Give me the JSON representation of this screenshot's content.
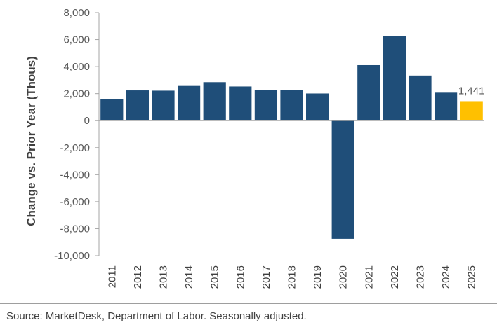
{
  "chart_data": {
    "type": "bar",
    "categories": [
      "2011",
      "2012",
      "2013",
      "2014",
      "2015",
      "2016",
      "2017",
      "2018",
      "2019",
      "2020",
      "2021",
      "2022",
      "2023",
      "2024",
      "2025"
    ],
    "values": [
      1600,
      2240,
      2220,
      2570,
      2850,
      2530,
      2260,
      2280,
      2010,
      -8750,
      4110,
      6250,
      3340,
      2070,
      1441
    ],
    "highlight_index": 14,
    "data_labels": [
      {
        "index": 14,
        "text": "1,441"
      }
    ],
    "title": "",
    "xlabel": "",
    "ylabel": "Change vs. Prior Year (Thous)",
    "ylim": [
      -10000,
      8000
    ],
    "yticks": [
      8000,
      6000,
      4000,
      2000,
      0,
      -2000,
      -4000,
      -6000,
      -8000,
      -10000
    ],
    "ytick_labels": [
      "8,000",
      "6,000",
      "4,000",
      "2,000",
      "0",
      "-2,000",
      "-4,000",
      "-6,000",
      "-8,000",
      "-10,000"
    ],
    "colors": {
      "bar": "#1f4e79",
      "highlight": "#ffc000",
      "axis": "#a6a6a6"
    },
    "grid": false,
    "legend": "none"
  },
  "source": "Source: MarketDesk, Department of Labor. Seasonally adjusted."
}
